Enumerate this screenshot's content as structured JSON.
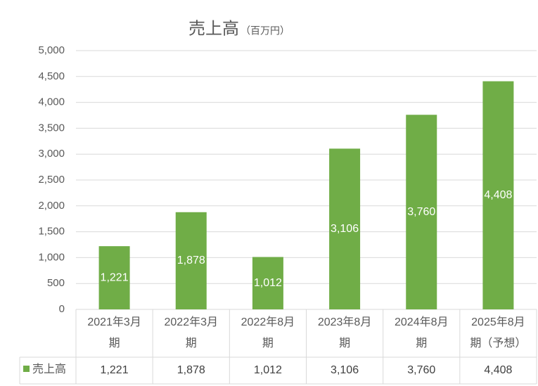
{
  "chart_data": {
    "type": "bar",
    "title": "売上高",
    "subtitle": "（百万円）",
    "categories": [
      "2021年3月期",
      "2022年3月期",
      "2022年8月期",
      "2023年8月期",
      "2024年8月期",
      "2025年8月期（予想）"
    ],
    "series": [
      {
        "name": "売上高",
        "color": "#70ad47",
        "values": [
          1221,
          1878,
          1012,
          3106,
          3760,
          4408
        ],
        "value_labels": [
          "1,221",
          "1,878",
          "1,012",
          "3,106",
          "3,760",
          "4,408"
        ]
      }
    ],
    "ylim": [
      0,
      5000
    ],
    "yticks": [
      0,
      500,
      {
        "value": 1000,
        "label": "1,000"
      },
      {
        "value": 1500,
        "label": "1,500"
      },
      {
        "value": 2000,
        "label": "2,000"
      },
      {
        "value": 2500,
        "label": "2,500"
      },
      {
        "value": 3000,
        "label": "3,000"
      },
      {
        "value": 3500,
        "label": "3,500"
      },
      {
        "value": 4000,
        "label": "4,000"
      },
      {
        "value": 4500,
        "label": "4,500"
      },
      {
        "value": 5000,
        "label": "5,000"
      }
    ],
    "grid": true
  }
}
